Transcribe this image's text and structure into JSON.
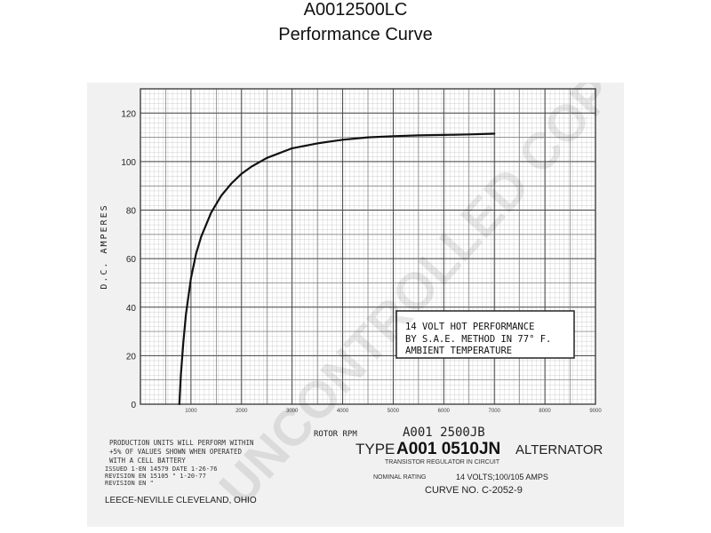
{
  "header": {
    "title": "A0012500LC",
    "subtitle": "Performance Curve"
  },
  "chart_data": {
    "type": "line",
    "ylabel": "D.C. AMPERES",
    "xlabel": "ROTOR RPM",
    "xlim": [
      0,
      9000
    ],
    "ylim": [
      0,
      130
    ],
    "x_ticks": [
      1000,
      2000,
      3000,
      4000,
      5000,
      6000,
      7000,
      8000,
      9000
    ],
    "x_tick_labels": [
      "1000",
      "2000",
      "3000",
      "4000",
      "5000",
      "6000",
      "7000",
      "8000",
      "9000"
    ],
    "y_ticks": [
      0,
      20,
      40,
      60,
      80,
      100,
      120
    ],
    "y_tick_labels": [
      "0",
      "20",
      "40",
      "60",
      "80",
      "100",
      "120"
    ],
    "grid": true,
    "series": [
      {
        "x": [
          770,
          800,
          850,
          900,
          1000,
          1100,
          1200,
          1400,
          1600,
          1800,
          2000,
          2200,
          2500,
          3000,
          3500,
          4000,
          4500,
          5000,
          5500,
          6000,
          6500,
          7000
        ],
        "y": [
          0,
          12,
          26,
          37,
          52,
          62,
          69,
          79,
          86,
          91,
          95,
          98,
          101.5,
          105.5,
          107.5,
          109,
          110,
          110.5,
          110.8,
          111,
          111.2,
          111.5
        ]
      }
    ],
    "annotation": [
      "14 VOLT HOT PERFORMANCE",
      "BY S.A.E. METHOD IN 77° F.",
      "AMBIENT TEMPERATURE"
    ]
  },
  "footer": {
    "model_small": "A001 2500JB",
    "type_label": "TYPE",
    "type_model": "A001 0510JN",
    "type_suffix": "ALTERNATOR",
    "regulator": "TRANSISTOR REGULATOR IN CIRCUIT",
    "rating_label": "NOMINAL RATING",
    "rating_value": "14 VOLTS;100/105 AMPS",
    "curve_no": "CURVE NO. C-2052-9",
    "notes": [
      "PRODUCTION UNITS WILL PERFORM WITHIN",
      "+5% OF VALUES SHOWN WHEN OPERATED",
      "WITH A CELL BATTERY",
      "ISSUED 1-EN 14579 DATE 1-26-76",
      "REVISION EN 15105 \" 1-20-77",
      "REVISION EN \" "
    ],
    "company": "LEECE-NEVILLE CLEVELAND, OHIO"
  },
  "watermark": "UNCONTROLLED COPY"
}
